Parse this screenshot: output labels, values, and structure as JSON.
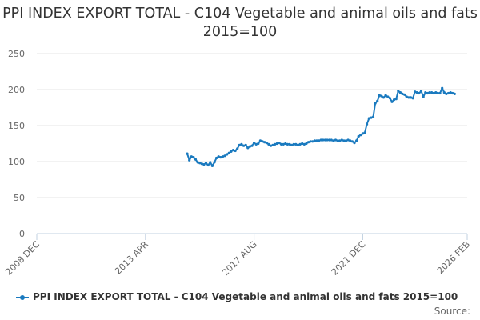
{
  "chart_data": {
    "type": "line",
    "title": "PPI INDEX EXPORT TOTAL - C104 Vegetable and animal oils and fats 2015=100",
    "xlabel": "",
    "ylabel": "",
    "ylim": [
      0,
      250
    ],
    "y_ticks": [
      "0",
      "50",
      "100",
      "150",
      "200",
      "250"
    ],
    "x_range": [
      "2008-12",
      "2026-02"
    ],
    "x_ticks": [
      {
        "date": "2008-12",
        "label": "2008 DEC"
      },
      {
        "date": "2013-04",
        "label": "2013 APR"
      },
      {
        "date": "2017-08",
        "label": "2017 AUG"
      },
      {
        "date": "2021-12",
        "label": "2021 DEC"
      },
      {
        "date": "2026-02",
        "label": "2026 FEB"
      }
    ],
    "grid": true,
    "legend_position": "bottom",
    "series": [
      {
        "name": "PPI INDEX EXPORT TOTAL - C104 Vegetable and animal oils and fats 2015=100",
        "color": "#1a7abf",
        "points": [
          [
            "2014-12",
            111
          ],
          [
            "2015-01",
            102
          ],
          [
            "2015-02",
            107
          ],
          [
            "2015-03",
            106
          ],
          [
            "2015-04",
            103
          ],
          [
            "2015-05",
            99
          ],
          [
            "2015-06",
            98
          ],
          [
            "2015-07",
            97
          ],
          [
            "2015-08",
            96
          ],
          [
            "2015-09",
            98
          ],
          [
            "2015-10",
            95
          ],
          [
            "2015-11",
            99
          ],
          [
            "2015-12",
            94
          ],
          [
            "2016-01",
            99
          ],
          [
            "2016-02",
            105
          ],
          [
            "2016-03",
            107
          ],
          [
            "2016-04",
            106
          ],
          [
            "2016-05",
            107
          ],
          [
            "2016-06",
            108
          ],
          [
            "2016-07",
            110
          ],
          [
            "2016-08",
            112
          ],
          [
            "2016-09",
            114
          ],
          [
            "2016-10",
            116
          ],
          [
            "2016-11",
            115
          ],
          [
            "2016-12",
            118
          ],
          [
            "2017-01",
            123
          ],
          [
            "2017-02",
            124
          ],
          [
            "2017-03",
            122
          ],
          [
            "2017-04",
            123
          ],
          [
            "2017-05",
            119
          ],
          [
            "2017-06",
            121
          ],
          [
            "2017-07",
            122
          ],
          [
            "2017-08",
            126
          ],
          [
            "2017-09",
            124
          ],
          [
            "2017-10",
            125
          ],
          [
            "2017-11",
            129
          ],
          [
            "2017-12",
            128
          ],
          [
            "2018-01",
            127
          ],
          [
            "2018-02",
            126
          ],
          [
            "2018-03",
            124
          ],
          [
            "2018-04",
            122
          ],
          [
            "2018-05",
            123
          ],
          [
            "2018-06",
            124
          ],
          [
            "2018-07",
            125
          ],
          [
            "2018-08",
            126
          ],
          [
            "2018-09",
            124
          ],
          [
            "2018-10",
            124
          ],
          [
            "2018-11",
            125
          ],
          [
            "2018-12",
            124
          ],
          [
            "2019-01",
            124
          ],
          [
            "2019-02",
            123
          ],
          [
            "2019-03",
            124
          ],
          [
            "2019-04",
            124
          ],
          [
            "2019-05",
            123
          ],
          [
            "2019-06",
            124
          ],
          [
            "2019-07",
            125
          ],
          [
            "2019-08",
            124
          ],
          [
            "2019-09",
            125
          ],
          [
            "2019-10",
            127
          ],
          [
            "2019-11",
            128
          ],
          [
            "2019-12",
            128
          ],
          [
            "2020-01",
            129
          ],
          [
            "2020-02",
            129
          ],
          [
            "2020-03",
            129
          ],
          [
            "2020-04",
            130
          ],
          [
            "2020-05",
            130
          ],
          [
            "2020-06",
            130
          ],
          [
            "2020-07",
            130
          ],
          [
            "2020-08",
            130
          ],
          [
            "2020-09",
            130
          ],
          [
            "2020-10",
            129
          ],
          [
            "2020-11",
            130
          ],
          [
            "2020-12",
            129
          ],
          [
            "2021-01",
            129
          ],
          [
            "2021-02",
            130
          ],
          [
            "2021-03",
            129
          ],
          [
            "2021-04",
            129
          ],
          [
            "2021-05",
            130
          ],
          [
            "2021-06",
            129
          ],
          [
            "2021-07",
            128
          ],
          [
            "2021-08",
            126
          ],
          [
            "2021-09",
            129
          ],
          [
            "2021-10",
            135
          ],
          [
            "2021-11",
            137
          ],
          [
            "2021-12",
            139
          ],
          [
            "2022-01",
            140
          ],
          [
            "2022-02",
            152
          ],
          [
            "2022-03",
            160
          ],
          [
            "2022-04",
            161
          ],
          [
            "2022-05",
            162
          ],
          [
            "2022-06",
            181
          ],
          [
            "2022-07",
            184
          ],
          [
            "2022-08",
            192
          ],
          [
            "2022-09",
            191
          ],
          [
            "2022-10",
            189
          ],
          [
            "2022-11",
            192
          ],
          [
            "2022-12",
            190
          ],
          [
            "2023-01",
            188
          ],
          [
            "2023-02",
            183
          ],
          [
            "2023-03",
            186
          ],
          [
            "2023-04",
            187
          ],
          [
            "2023-05",
            198
          ],
          [
            "2023-06",
            196
          ],
          [
            "2023-07",
            194
          ],
          [
            "2023-08",
            193
          ],
          [
            "2023-09",
            190
          ],
          [
            "2023-10",
            189
          ],
          [
            "2023-11",
            189
          ],
          [
            "2023-12",
            188
          ],
          [
            "2024-01",
            197
          ],
          [
            "2024-02",
            196
          ],
          [
            "2024-03",
            195
          ],
          [
            "2024-04",
            198
          ],
          [
            "2024-05",
            190
          ],
          [
            "2024-06",
            196
          ],
          [
            "2024-07",
            195
          ],
          [
            "2024-08",
            196
          ],
          [
            "2024-09",
            196
          ],
          [
            "2024-10",
            195
          ],
          [
            "2024-11",
            196
          ],
          [
            "2024-12",
            195
          ],
          [
            "2025-01",
            195
          ],
          [
            "2025-02",
            202
          ],
          [
            "2025-03",
            196
          ],
          [
            "2025-04",
            194
          ],
          [
            "2025-05",
            195
          ],
          [
            "2025-06",
            196
          ],
          [
            "2025-07",
            195
          ],
          [
            "2025-08",
            194
          ]
        ]
      }
    ]
  },
  "source_label": "Source:"
}
